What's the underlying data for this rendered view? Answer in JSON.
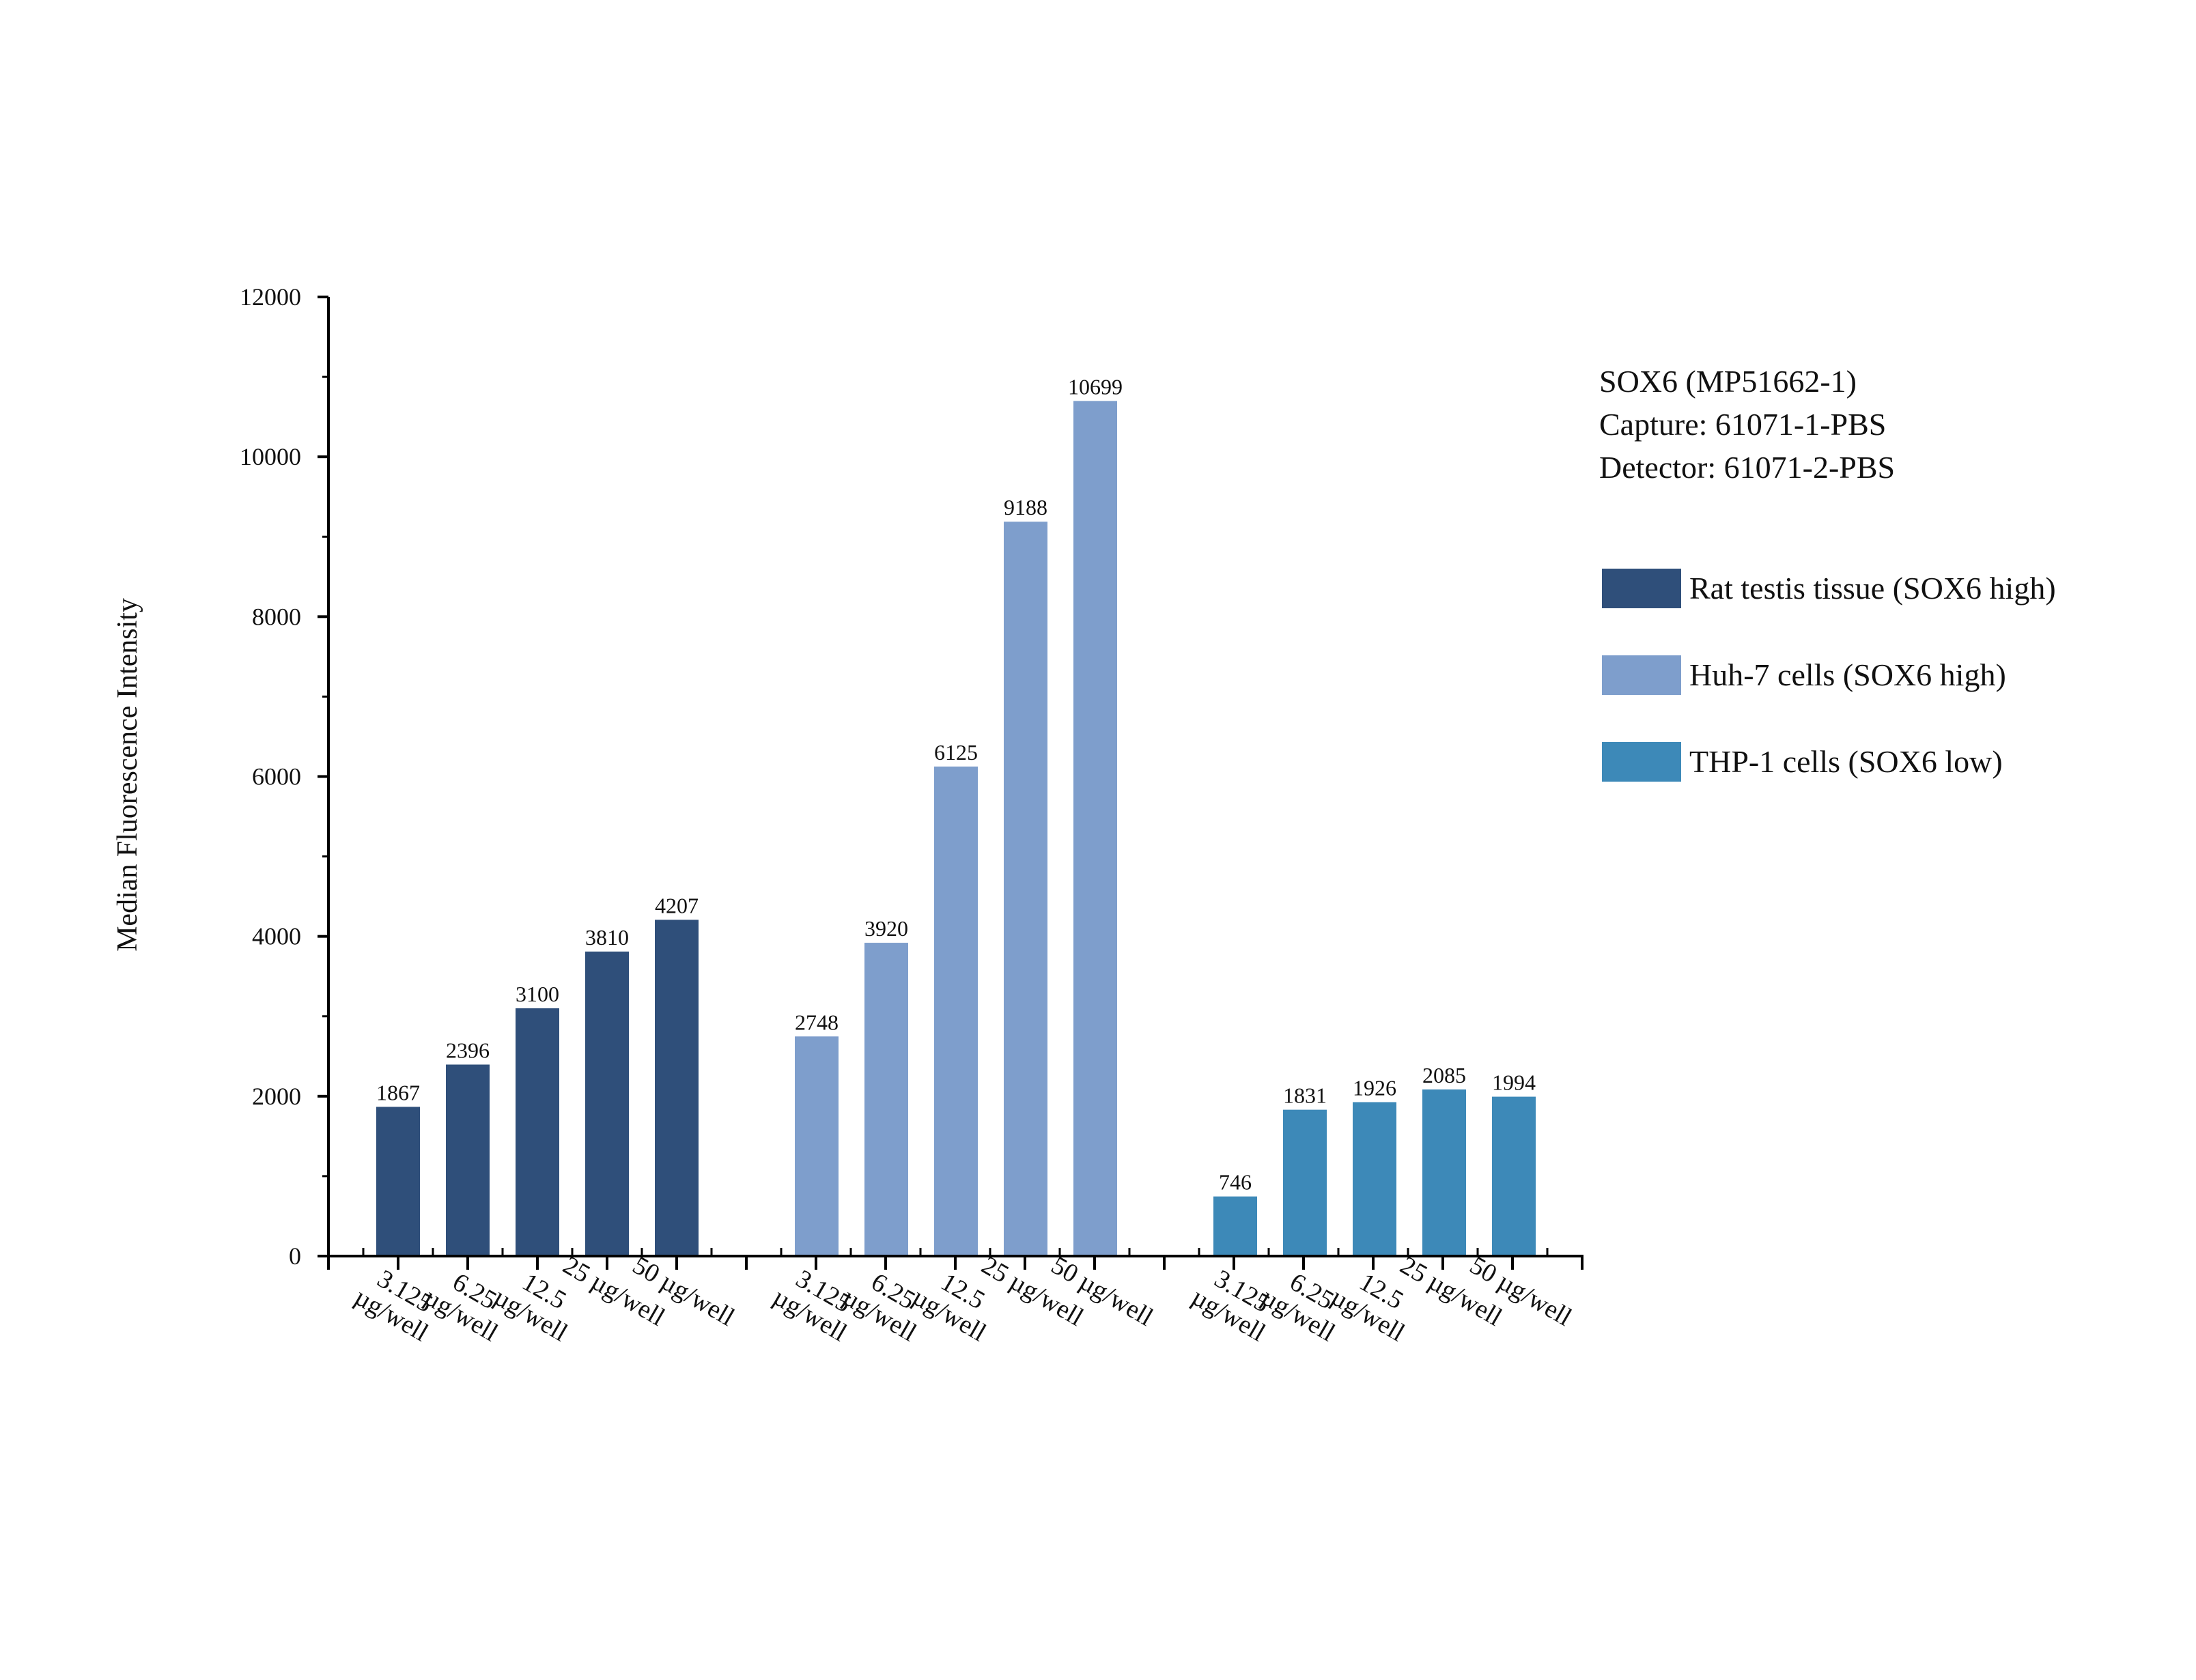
{
  "chart_data": {
    "type": "bar",
    "title": "",
    "xlabel": "",
    "ylabel": "Median Fluorescence Intensity",
    "ylim": [
      0,
      12000
    ],
    "y_ticks": [
      "0",
      "2000",
      "4000",
      "6000",
      "8000",
      "10000",
      "12000"
    ],
    "categories": [
      "3.125 µg/well",
      "6.25 µg/well",
      "12.5 µg/well",
      "25 µg/well",
      "50 µg/well"
    ],
    "info_lines": [
      "SOX6 (MP51662-1)",
      "Capture: 61071-1-PBS",
      "Detector: 61071-2-PBS"
    ],
    "legend_position": "right",
    "grid": false,
    "series": [
      {
        "name": "Rat testis tissue (SOX6 high)",
        "color": "#2f4f7a",
        "values": [
          1867,
          2396,
          3100,
          3810,
          4207
        ],
        "labels": [
          "1867",
          "2396",
          "3100",
          "3810",
          "4207"
        ]
      },
      {
        "name": "Huh-7 cells (SOX6 high)",
        "color": "#7e9ecc",
        "values": [
          2748,
          3920,
          6125,
          9188,
          10699
        ],
        "labels": [
          "2748",
          "3920",
          "6125",
          "9188",
          "10699"
        ]
      },
      {
        "name": "THP-1 cells (SOX6 low)",
        "color": "#3d89b8",
        "values": [
          746,
          1831,
          1926,
          2085,
          1994
        ],
        "labels": [
          "746",
          "1831",
          "1926",
          "2085",
          "1994"
        ]
      }
    ]
  }
}
